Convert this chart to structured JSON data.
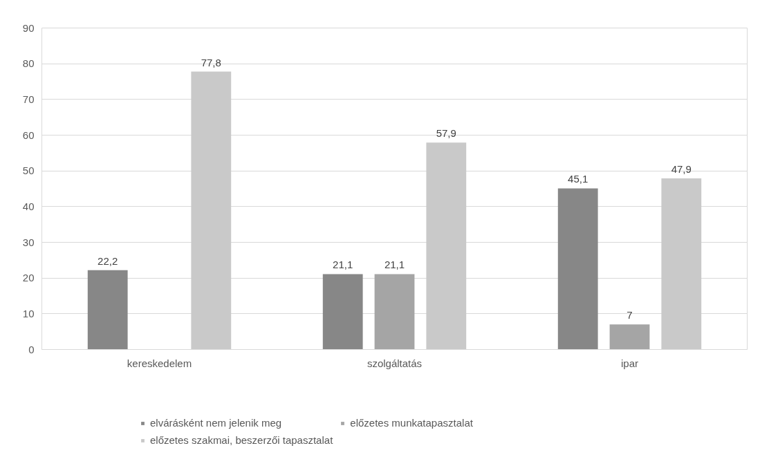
{
  "chart_data": {
    "type": "bar",
    "categories": [
      "kereskedelem",
      "szolgáltatás",
      "ipar"
    ],
    "series": [
      {
        "name": "elvárásként nem jelenik meg",
        "color": "#878787",
        "values": [
          22.2,
          21.1,
          45.1
        ],
        "value_labels": [
          "22,2",
          "21,1",
          "45,1"
        ]
      },
      {
        "name": "előzetes munkatapasztalat",
        "color": "#a5a5a5",
        "values": [
          null,
          21.1,
          7
        ],
        "value_labels": [
          null,
          "21,1",
          "7"
        ]
      },
      {
        "name": "előzetes szakmai, beszerzői tapasztalat",
        "color": "#c9c9c9",
        "values": [
          77.8,
          57.9,
          47.9
        ],
        "value_labels": [
          "77,8",
          "57,9",
          "47,9"
        ]
      }
    ],
    "ylim": [
      0,
      90
    ],
    "yticks": [
      0,
      10,
      20,
      30,
      40,
      50,
      60,
      70,
      80,
      90
    ],
    "grid": "y",
    "legend": "bottom"
  }
}
